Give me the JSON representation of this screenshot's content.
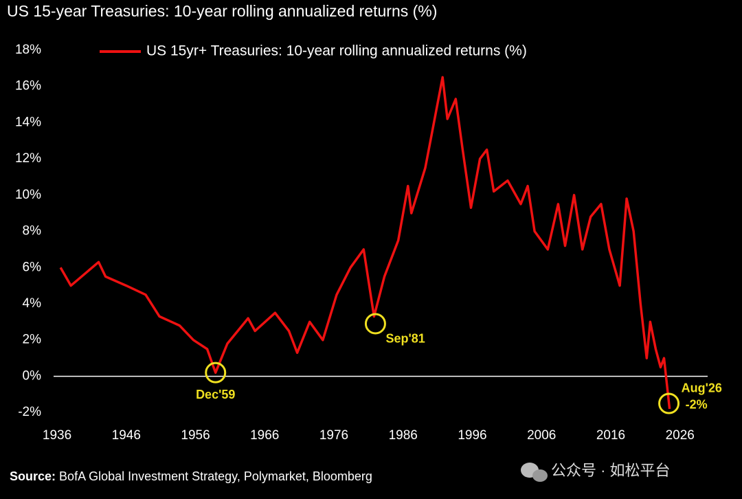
{
  "chart_data": {
    "type": "line",
    "title": "US 15-year Treasuries: 10-year rolling annualized returns (%)",
    "source_label": "Source:",
    "source": "BofA Global Investment Strategy, Polymarket, Bloomberg",
    "watermark": "公众号 · 如松平台",
    "legend": "top-left",
    "hline": 0,
    "xlim": [
      1935.5,
      2030
    ],
    "xticks": [
      1936,
      1946,
      1956,
      1966,
      1976,
      1986,
      1996,
      2006,
      2016,
      2026
    ],
    "ylim": [
      -2.6,
      18.6
    ],
    "yticks": [
      {
        "value": -2,
        "label": "-2%"
      },
      {
        "value": 0,
        "label": "0%"
      },
      {
        "value": 2,
        "label": "2%"
      },
      {
        "value": 4,
        "label": "4%"
      },
      {
        "value": 6,
        "label": "6%"
      },
      {
        "value": 8,
        "label": "8%"
      },
      {
        "value": 10,
        "label": "10%"
      },
      {
        "value": 12,
        "label": "12%"
      },
      {
        "value": 14,
        "label": "14%"
      },
      {
        "value": 16,
        "label": "16%"
      },
      {
        "value": 18,
        "label": "18%"
      }
    ],
    "series": [
      {
        "name": "US 15yr+ Treasuries: 10-year rolling annualized returns (%)",
        "color": "#ee1111",
        "x": [
          1936.5,
          1938,
          1942,
          1943,
          1946,
          1948.8,
          1950.8,
          1953.7,
          1955.7,
          1957.7,
          1958.9,
          1960.6,
          1963.6,
          1964.6,
          1967.5,
          1969.5,
          1970.7,
          1972.5,
          1974.4,
          1976.4,
          1978.4,
          1980.3,
          1981.8,
          1983.3,
          1985.3,
          1986.7,
          1987.2,
          1989.2,
          1990.2,
          1991.7,
          1992.4,
          1993.6,
          1994.6,
          1995.8,
          1997.1,
          1998.1,
          1999.1,
          2001.1,
          2003,
          2004,
          2005,
          2006.9,
          2008.4,
          2009.4,
          2010.7,
          2011.9,
          2013.1,
          2014.6,
          2015.8,
          2017.3,
          2018.3,
          2019.3,
          2020.3,
          2021.2,
          2021.7,
          2022.5,
          2023.2,
          2023.7,
          2024.5
        ],
        "values": [
          6.0,
          5.0,
          6.3,
          5.5,
          5.0,
          4.5,
          3.3,
          2.8,
          2.0,
          1.5,
          0.2,
          1.8,
          3.2,
          2.5,
          3.5,
          2.5,
          1.3,
          3.0,
          2.0,
          4.5,
          6.0,
          7.0,
          3.3,
          5.5,
          7.5,
          10.5,
          9.0,
          11.5,
          13.5,
          16.5,
          14.2,
          15.3,
          12.5,
          9.3,
          12.0,
          12.5,
          10.2,
          10.8,
          9.5,
          10.5,
          8.0,
          7.0,
          9.5,
          7.2,
          10.0,
          7.0,
          8.8,
          9.5,
          7.0,
          5.0,
          9.8,
          8.0,
          4.0,
          1.0,
          3.0,
          1.5,
          0.5,
          1.0,
          -1.8
        ]
      }
    ],
    "annotations": [
      {
        "text": "Dec'59",
        "x": 1958.9,
        "y": 0.2
      },
      {
        "text": "Sep'81",
        "x": 1982,
        "y": 2.9
      },
      {
        "text": "Aug'26",
        "label": "-2%",
        "x": 2024.4,
        "y": -1.5
      }
    ]
  }
}
